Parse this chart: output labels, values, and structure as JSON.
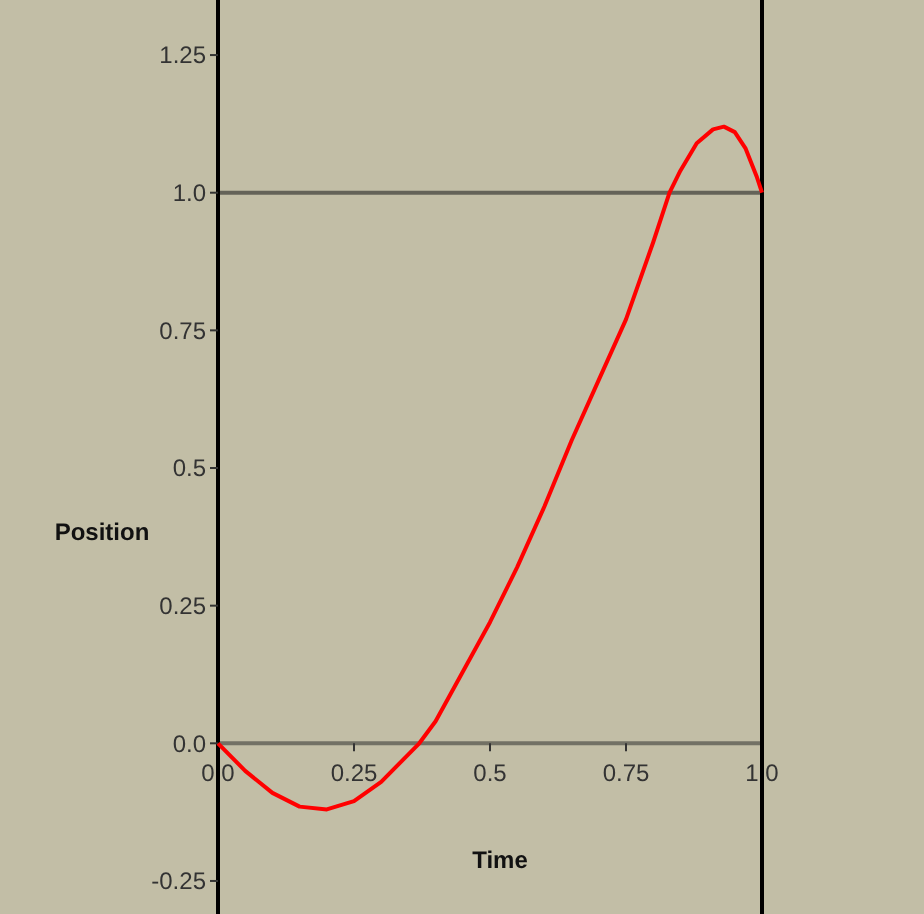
{
  "chart_data": {
    "type": "line",
    "xlabel": "Time",
    "ylabel": "Position",
    "xlim": [
      0,
      1
    ],
    "ylim": [
      -0.31,
      1.35
    ],
    "xticks": [
      {
        "value": 0,
        "label": "0.0"
      },
      0.25,
      0.5,
      0.75,
      {
        "value": 1,
        "label": "1.0"
      }
    ],
    "yticks": [
      -0.25,
      {
        "value": 0,
        "label": "0.0"
      },
      0.25,
      0.5,
      0.75,
      {
        "value": 1,
        "label": "1.0"
      },
      1.25
    ],
    "grid": false,
    "marker": "none",
    "line_style": "solid",
    "ref_lines": [
      {
        "axis": "y",
        "value": 1,
        "color": "#646358"
      }
    ],
    "series": [
      {
        "color": "#ff0000",
        "x": [
          0,
          0.05,
          0.1,
          0.15,
          0.2,
          0.25,
          0.3,
          0.35,
          0.37,
          0.4,
          0.45,
          0.5,
          0.55,
          0.6,
          0.65,
          0.7,
          0.75,
          0.8,
          0.83,
          0.85,
          0.88,
          0.91,
          0.93,
          0.95,
          0.97,
          0.99,
          1
        ],
        "values": [
          0,
          -0.05,
          -0.09,
          -0.115,
          -0.12,
          -0.105,
          -0.07,
          -0.02,
          0,
          0.04,
          0.13,
          0.22,
          0.32,
          0.43,
          0.55,
          0.66,
          0.77,
          0.91,
          1.0,
          1.04,
          1.09,
          1.115,
          1.12,
          1.11,
          1.08,
          1.03,
          1.0
        ]
      }
    ]
  }
}
